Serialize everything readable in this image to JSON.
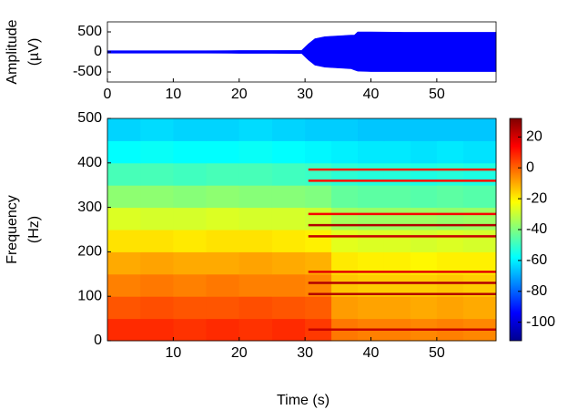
{
  "chart_data": [
    {
      "type": "amplitude",
      "ylabel": [
        "Amplitude",
        "(µV)"
      ],
      "x": [
        0,
        5,
        10,
        15,
        20,
        25,
        29.5,
        30.5,
        31.5,
        33,
        35,
        37,
        37.5,
        38,
        40,
        45,
        50,
        55,
        59
      ],
      "series": [
        {
          "color": "#0000ff",
          "values": [
            30,
            30,
            30,
            30,
            35,
            35,
            40,
            200,
            330,
            380,
            400,
            420,
            420,
            500,
            500,
            490,
            490,
            490,
            490
          ]
        },
        {
          "color": "#0000ff",
          "values": [
            -30,
            -30,
            -30,
            -30,
            -35,
            -35,
            -40,
            -200,
            -330,
            -380,
            -400,
            -420,
            -450,
            -480,
            -490,
            -490,
            -490,
            -490,
            -490
          ]
        }
      ],
      "xlim": [
        0,
        59
      ],
      "ylim": [
        -750,
        750
      ],
      "xticks": [
        0,
        10,
        20,
        30,
        40,
        50
      ],
      "yticks": [
        500,
        0,
        -500
      ]
    },
    {
      "type": "heatmap",
      "xlabel": "Time (s)",
      "ylabel": [
        "Frequency",
        "(Hz)"
      ],
      "x_bins": [
        0,
        5,
        10,
        15,
        20,
        25,
        30,
        34,
        38,
        42,
        46,
        50,
        54,
        59
      ],
      "y_bins": [
        0,
        50,
        100,
        150,
        200,
        250,
        300,
        350,
        400,
        450,
        500
      ],
      "z": [
        [
          8,
          8,
          7,
          8,
          7,
          8,
          6,
          -3,
          -4,
          -4,
          -5,
          -4,
          -5
        ],
        [
          2,
          3,
          2,
          2,
          3,
          2,
          1,
          -8,
          -9,
          -9,
          -10,
          -9,
          -10
        ],
        [
          -4,
          -3,
          -4,
          -3,
          -4,
          -4,
          -5,
          -14,
          -15,
          -15,
          -15,
          -14,
          -15
        ],
        [
          -10,
          -9,
          -10,
          -10,
          -9,
          -10,
          -11,
          -19,
          -20,
          -20,
          -21,
          -20,
          -20
        ],
        [
          -18,
          -18,
          -19,
          -18,
          -18,
          -19,
          -20,
          -26,
          -27,
          -27,
          -28,
          -27,
          -28
        ],
        [
          -27,
          -28,
          -28,
          -27,
          -28,
          -28,
          -29,
          -35,
          -36,
          -36,
          -36,
          -37,
          -36
        ],
        [
          -38,
          -38,
          -39,
          -38,
          -39,
          -39,
          -40,
          -44,
          -45,
          -45,
          -46,
          -45,
          -46
        ],
        [
          -48,
          -48,
          -49,
          -48,
          -48,
          -49,
          -50,
          -52,
          -53,
          -53,
          -54,
          -53,
          -54
        ],
        [
          -58,
          -57,
          -58,
          -58,
          -57,
          -58,
          -59,
          -60,
          -61,
          -61,
          -62,
          -61,
          -62
        ],
        [
          -64,
          -63,
          -64,
          -64,
          -63,
          -64,
          -65,
          -65,
          -66,
          -66,
          -66,
          -66,
          -66
        ]
      ],
      "tones": {
        "x": [
          30.5,
          59
        ],
        "freqs": [
          25,
          105,
          130,
          155,
          235,
          260,
          285,
          360,
          385
        ],
        "values": [
          22,
          25,
          25,
          18,
          22,
          25,
          15,
          12,
          10
        ]
      },
      "xlim": [
        0,
        59
      ],
      "ylim": [
        0,
        500
      ],
      "xticks": [
        10,
        20,
        30,
        40,
        50
      ],
      "yticks": [
        0,
        100,
        200,
        300,
        400,
        500
      ],
      "clim": [
        -112,
        32
      ],
      "cticks": [
        20,
        0,
        -20,
        -40,
        -60,
        -80,
        -100
      ],
      "colormap": "jet"
    }
  ]
}
